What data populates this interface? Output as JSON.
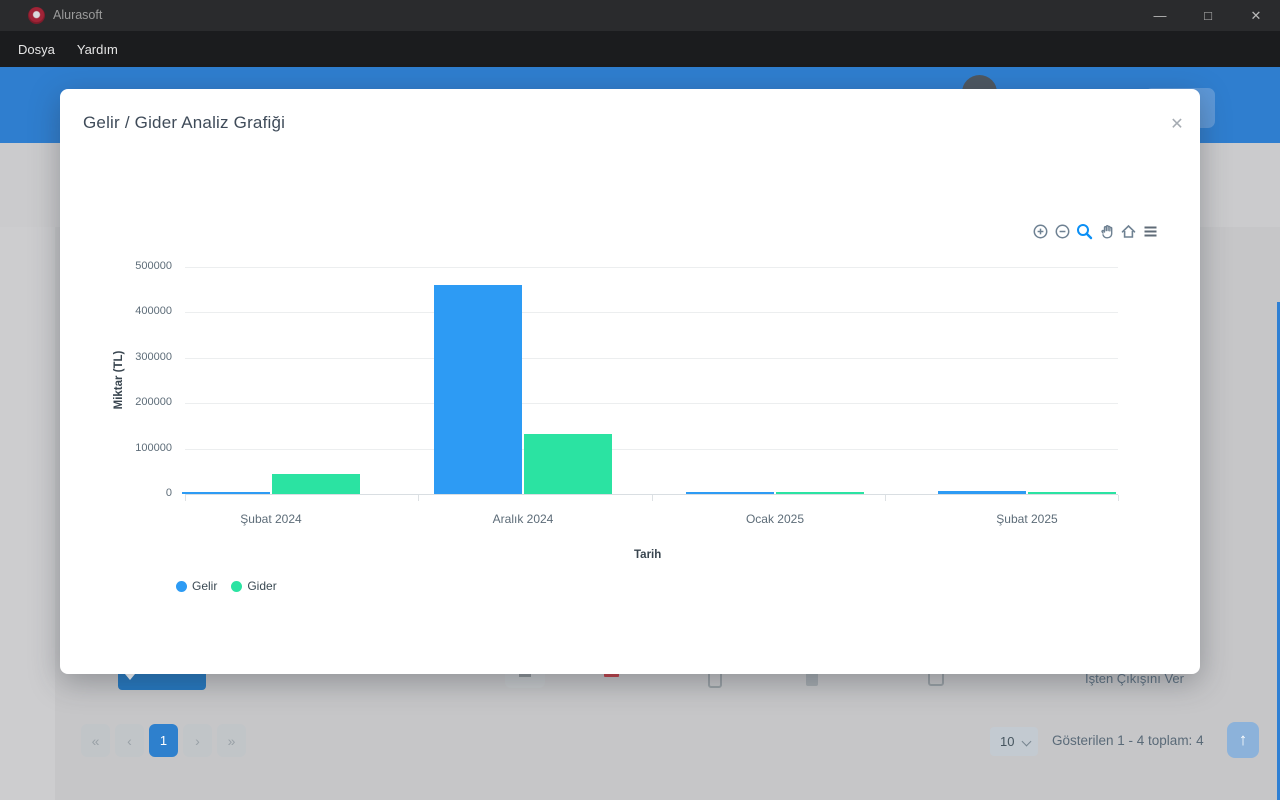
{
  "window": {
    "app_title": "Alurasoft",
    "menu_items": [
      "Dosya",
      "Yardım"
    ],
    "minimize_label": "—",
    "maximize_label": "□",
    "close_label": "✕"
  },
  "modal": {
    "title": "Gelir / Gider Analiz Grafiği",
    "close_label": "✕",
    "toolbar_icons": [
      "zoom-in",
      "zoom-out",
      "selection-zoom",
      "pan",
      "home",
      "menu"
    ]
  },
  "chart_data": {
    "type": "bar",
    "title": "Gelir / Gider Analiz Grafiği",
    "categories": [
      "Şubat 2024",
      "Aralık 2024",
      "Ocak 2025",
      "Şubat 2025"
    ],
    "series": [
      {
        "name": "Gelir",
        "color": "#2d9bf4",
        "values": [
          3000,
          460000,
          4000,
          7000
        ]
      },
      {
        "name": "Gider",
        "color": "#2be3a2",
        "values": [
          43000,
          132000,
          2000,
          4000
        ]
      }
    ],
    "xlabel": "Tarih",
    "ylabel": "Miktar (TL)",
    "ylim": [
      0,
      500000
    ],
    "yticks": [
      0,
      100000,
      200000,
      300000,
      400000,
      500000
    ],
    "grid": true,
    "legend_position": "bottom-left"
  },
  "page_background": {
    "pagination": {
      "buttons": [
        "«",
        "‹",
        "1",
        "›",
        "»"
      ],
      "active_index": 2
    },
    "page_size_value": "10",
    "summary_text": "Gösterilen 1 - 4 toplam: 4",
    "action_link": "İşten Çıkışını Ver",
    "scroll_top_icon": "↑"
  },
  "colors": {
    "header_blue": "#2f7ecf",
    "series_gelir": "#2d9bf4",
    "series_gider": "#2be3a2",
    "active_page_bg": "#2e80cd",
    "toolbar_icon_gray": "#6e8192",
    "toolbar_icon_active": "#0b8ff5"
  }
}
